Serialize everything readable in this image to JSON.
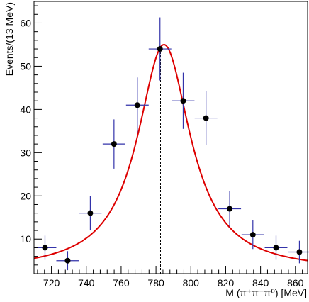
{
  "chart_data": {
    "type": "scatter",
    "xlabel": "M (π⁺π⁻π⁰) [MeV]",
    "ylabel": "Events/(13 MeV)",
    "xlim": [
      710,
      867
    ],
    "ylim": [
      2,
      65
    ],
    "x_ticks": [
      720,
      740,
      760,
      780,
      800,
      820,
      840,
      860
    ],
    "y_ticks": [
      10,
      20,
      30,
      40,
      50,
      60
    ],
    "grid": false,
    "legend": "none",
    "series": [
      {
        "kind": "points_with_errors",
        "color": "#000000",
        "error_color": "#3333aa",
        "x": [
          716.3,
          729.3,
          742.3,
          755.9,
          769.3,
          782.3,
          795.6,
          808.7,
          822.3,
          835.6,
          848.9,
          862.3
        ],
        "y": [
          8,
          5,
          16,
          32,
          41,
          54,
          42,
          38,
          17,
          11,
          8,
          7
        ],
        "xerr": [
          6.5,
          6.5,
          6.5,
          6.5,
          6.5,
          6.5,
          6.5,
          6.5,
          6.5,
          6.5,
          6.5,
          6.5
        ],
        "yerr": [
          2.8,
          2.2,
          4.0,
          5.7,
          6.4,
          7.3,
          6.5,
          6.2,
          4.1,
          3.3,
          2.8,
          2.6
        ]
      },
      {
        "kind": "fit_curve",
        "color": "#dd0000",
        "model": "Breit-Wigner plus constant background",
        "peak_x": 784.6,
        "peak_y": 55.0,
        "gamma": 37.0,
        "background": 2.5
      }
    ],
    "reference_line": {
      "x": 782.6,
      "style": "dashed",
      "color": "#000000"
    }
  }
}
